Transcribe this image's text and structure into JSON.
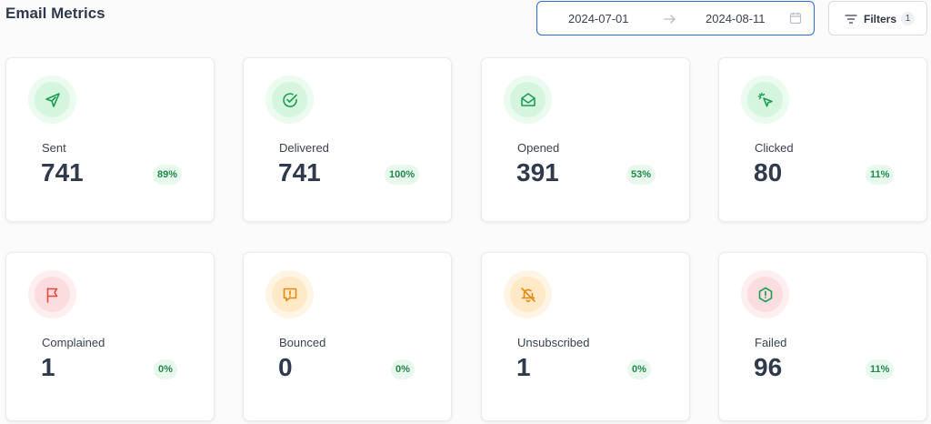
{
  "header": {
    "title": "Email Metrics",
    "date_range": {
      "start": "2024-07-01",
      "end": "2024-08-11"
    },
    "filters": {
      "label": "Filters",
      "count": "1"
    }
  },
  "colors": {
    "accent_blue": "#2e6bd6",
    "green": "#1f9d55",
    "red": "#e5483f",
    "orange": "#e58a12"
  },
  "metrics": [
    {
      "label": "Sent",
      "value": "741",
      "percent": "89%",
      "icon": "send-icon",
      "tone": "green"
    },
    {
      "label": "Delivered",
      "value": "741",
      "percent": "100%",
      "icon": "check-circle-icon",
      "tone": "green"
    },
    {
      "label": "Opened",
      "value": "391",
      "percent": "53%",
      "icon": "envelope-open-icon",
      "tone": "green"
    },
    {
      "label": "Clicked",
      "value": "80",
      "percent": "11%",
      "icon": "cursor-click-icon",
      "tone": "green"
    },
    {
      "label": "Complained",
      "value": "1",
      "percent": "0%",
      "icon": "flag-icon",
      "tone": "red"
    },
    {
      "label": "Bounced",
      "value": "0",
      "percent": "0%",
      "icon": "message-alert-icon",
      "tone": "orange"
    },
    {
      "label": "Unsubscribed",
      "value": "1",
      "percent": "0%",
      "icon": "bell-off-icon",
      "tone": "orange"
    },
    {
      "label": "Failed",
      "value": "96",
      "percent": "11%",
      "icon": "octagon-alert-icon",
      "tone": "green"
    }
  ]
}
